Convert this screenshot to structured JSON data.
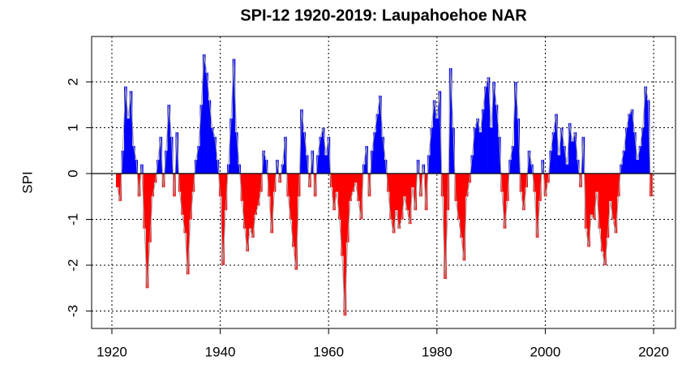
{
  "chart_data": {
    "type": "area",
    "title": "SPI-12 1920-2019: Laupahoehoe NAR",
    "y_label": "SPI",
    "positive_color": "#0000ff",
    "negative_color": "#ff0000",
    "line_color": "#a0a0a0",
    "grid": true,
    "xlim": [
      1916.26,
      2024.04
    ],
    "ylim": [
      -3.38,
      2.99
    ],
    "xticks": [
      1920,
      1940,
      1960,
      1980,
      2000,
      2020
    ],
    "yticks": [
      -3,
      -2,
      -1,
      0,
      1,
      2
    ],
    "x": [
      1921,
      1921.5,
      1922,
      1922.5,
      1923,
      1923.5,
      1924,
      1924.5,
      1925,
      1925.5,
      1926,
      1926.5,
      1927,
      1927.5,
      1928,
      1928.5,
      1929,
      1929.5,
      1930,
      1930.5,
      1931,
      1931.5,
      1932,
      1932.5,
      1933,
      1933.5,
      1934,
      1934.5,
      1935,
      1935.5,
      1936,
      1936.5,
      1937,
      1937.5,
      1938,
      1938.5,
      1939,
      1939.5,
      1940,
      1940.5,
      1941,
      1941.5,
      1942,
      1942.5,
      1943,
      1943.5,
      1944,
      1944.5,
      1945,
      1945.5,
      1946,
      1946.5,
      1947,
      1947.5,
      1948,
      1948.5,
      1949,
      1949.5,
      1950,
      1950.5,
      1951,
      1951.5,
      1952,
      1952.5,
      1953,
      1953.5,
      1954,
      1954.5,
      1955,
      1955.5,
      1956,
      1956.5,
      1957,
      1957.5,
      1958,
      1958.5,
      1959,
      1959.5,
      1960,
      1960.5,
      1961,
      1961.5,
      1962,
      1962.5,
      1963,
      1963.5,
      1964,
      1964.5,
      1965,
      1965.5,
      1966,
      1966.5,
      1967,
      1967.5,
      1968,
      1968.5,
      1969,
      1969.5,
      1970,
      1970.5,
      1971,
      1971.5,
      1972,
      1972.5,
      1973,
      1973.5,
      1974,
      1974.5,
      1975,
      1975.5,
      1976,
      1976.5,
      1977,
      1977.5,
      1978,
      1978.5,
      1979,
      1979.5,
      1980,
      1980.5,
      1981,
      1981.5,
      1982,
      1982.5,
      1983,
      1983.5,
      1984,
      1984.5,
      1985,
      1985.5,
      1986,
      1986.5,
      1987,
      1987.5,
      1988,
      1988.5,
      1989,
      1989.5,
      1990,
      1990.5,
      1991,
      1991.5,
      1992,
      1992.5,
      1993,
      1993.5,
      1994,
      1994.5,
      1995,
      1995.5,
      1996,
      1996.5,
      1997,
      1997.5,
      1998,
      1998.5,
      1999,
      1999.5,
      2000,
      2000.5,
      2001,
      2001.5,
      2002,
      2002.5,
      2003,
      2003.5,
      2004,
      2004.5,
      2005,
      2005.5,
      2006,
      2006.5,
      2007,
      2007.5,
      2008,
      2008.5,
      2009,
      2009.5,
      2010,
      2010.5,
      2011,
      2011.5,
      2012,
      2012.5,
      2013,
      2013.5,
      2014,
      2014.5,
      2015,
      2015.5,
      2016,
      2016.5,
      2017,
      2017.5,
      2018,
      2018.5,
      2019,
      2019.5
    ],
    "values": [
      -0.3,
      -0.6,
      0.5,
      1.9,
      1.2,
      1.8,
      0.6,
      0.3,
      -0.5,
      0.2,
      -1.2,
      -2.5,
      -1.5,
      -0.5,
      -0.2,
      0.3,
      0.8,
      -0.3,
      0.5,
      1.5,
      0.8,
      -0.5,
      0.9,
      -0.4,
      -0.9,
      -1.3,
      -2.2,
      -1.0,
      -0.4,
      0.3,
      0.6,
      1.5,
      2.6,
      2.2,
      1.6,
      1.0,
      0.8,
      0.3,
      -0.5,
      -2.0,
      -0.8,
      0.2,
      1.2,
      2.5,
      0.9,
      0.2,
      -0.6,
      -1.2,
      -1.7,
      -1.2,
      -1.4,
      -0.9,
      -0.7,
      -0.4,
      0.5,
      0.3,
      -0.5,
      -1.3,
      -0.4,
      0.3,
      -0.2,
      0.2,
      0.8,
      -0.5,
      -1.0,
      -1.6,
      -2.1,
      -0.5,
      1.4,
      0.9,
      0.4,
      -0.3,
      0.5,
      -0.5,
      0.4,
      0.8,
      1.0,
      0.4,
      0.8,
      -0.3,
      -0.8,
      -0.4,
      -1.0,
      -1.8,
      -3.1,
      -1.5,
      -0.6,
      -0.4,
      -0.2,
      -0.6,
      -1.0,
      0.2,
      0.6,
      -0.5,
      0.5,
      0.9,
      1.3,
      1.7,
      0.8,
      0.3,
      -0.4,
      -1.0,
      -1.3,
      -0.8,
      -1.2,
      -1.0,
      -0.5,
      -0.8,
      -1.1,
      -0.3,
      -0.8,
      0.3,
      -0.5,
      0.2,
      -0.8,
      0.4,
      1.0,
      1.6,
      1.2,
      1.8,
      -0.5,
      -2.3,
      -0.8,
      2.3,
      1.0,
      -0.6,
      -1.0,
      -1.4,
      -1.9,
      -0.5,
      -0.2,
      0.4,
      1.0,
      1.2,
      0.9,
      1.4,
      1.9,
      2.1,
      1.0,
      2.0,
      1.5,
      0.8,
      -0.4,
      -1.2,
      -0.6,
      0.3,
      0.6,
      2.0,
      1.2,
      -0.4,
      -0.8,
      -0.3,
      0.5,
      0.2,
      -0.4,
      -1.4,
      -0.6,
      0.3,
      -0.5,
      -0.2,
      0.5,
      0.9,
      1.3,
      0.4,
      1.0,
      0.6,
      0.2,
      1.1,
      0.7,
      0.9,
      0.3,
      -0.3,
      0.8,
      -1.2,
      -1.6,
      -0.9,
      -1.0,
      -0.4,
      -1.2,
      -1.7,
      -2.0,
      -1.4,
      -0.6,
      -1.0,
      -1.3,
      -0.5,
      0.2,
      0.5,
      1.0,
      1.3,
      1.4,
      0.9,
      0.3,
      0.6,
      1.0,
      1.9,
      1.6,
      -0.5
    ]
  }
}
